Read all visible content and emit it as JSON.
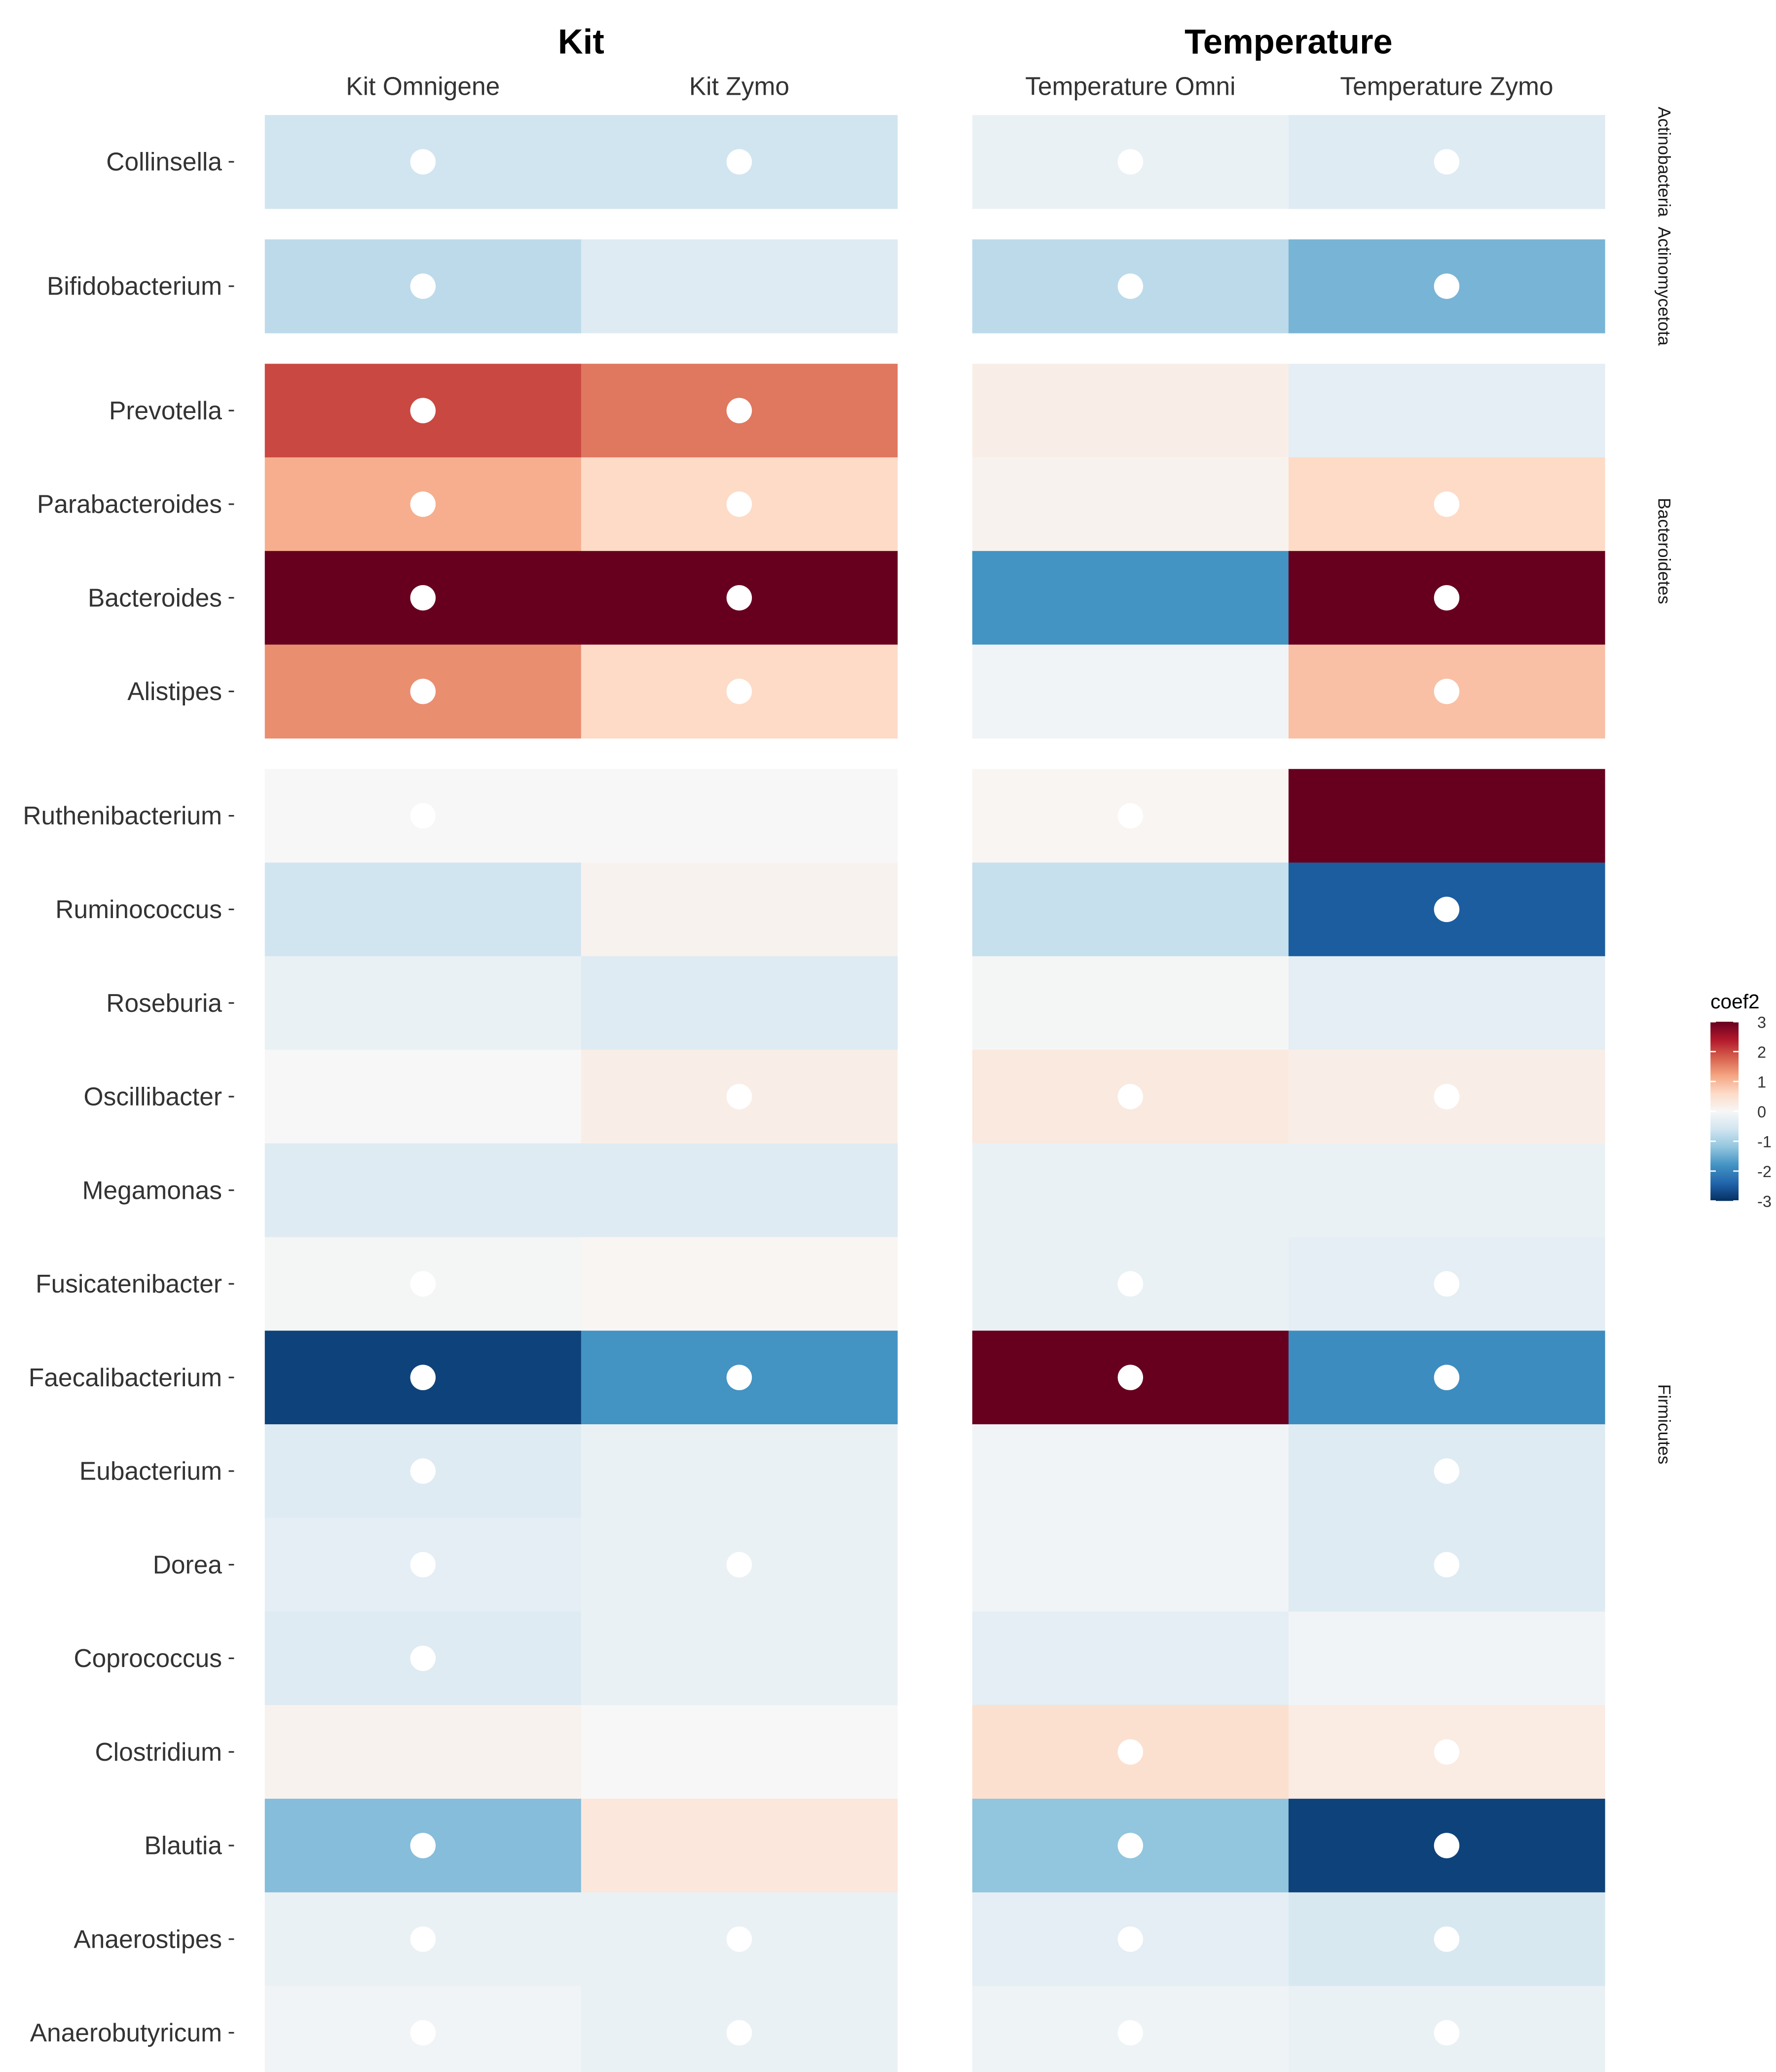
{
  "chart_data": {
    "type": "heatmap",
    "legend": {
      "title": "coef2",
      "ticks": [
        3,
        2,
        1,
        0,
        -1,
        -2,
        -3
      ],
      "range": [
        -3,
        3
      ],
      "position": "right"
    },
    "colors": {
      "scale": [
        "#053061",
        "#2166ac",
        "#4393c3",
        "#92c5de",
        "#d1e5f0",
        "#f7f7f7",
        "#fddbc7",
        "#f4a582",
        "#d6604d",
        "#b2182b",
        "#67001f"
      ],
      "marker": "#ffffff"
    },
    "facets": [
      {
        "title": "Kit",
        "columns": [
          "Kit Omnigene",
          "Kit Zymo"
        ]
      },
      {
        "title": "Temperature",
        "columns": [
          "Temperature Omni",
          "Temperature Zymo"
        ]
      }
    ],
    "groups": [
      {
        "name": "Actinobacteria",
        "rows": [
          "Collinsella"
        ]
      },
      {
        "name": "Actinomycetota",
        "rows": [
          "Bifidobacterium"
        ]
      },
      {
        "name": "Bacteroidetes",
        "rows": [
          "Prevotella",
          "Parabacteroides",
          "Bacteroides",
          "Alistipes"
        ]
      },
      {
        "name": "Firmicutes",
        "rows": [
          "Ruthenibacterium",
          "Ruminococcus",
          "Roseburia",
          "Oscillibacter",
          "Megamonas",
          "Fusicatenibacter",
          "Faecalibacterium",
          "Eubacterium",
          "Dorea",
          "Coprococcus",
          "Clostridium",
          "Blautia",
          "Anaerostipes",
          "Anaerobutyricum"
        ]
      }
    ],
    "values": {
      "Collinsella": [
        -0.6,
        -0.6,
        -0.2,
        -0.4
      ],
      "Bifidobacterium": [
        -0.8,
        -0.4,
        -0.8,
        -1.4
      ],
      "Prevotella": [
        2.0,
        1.6,
        0.2,
        -0.3
      ],
      "Parabacteroides": [
        1.1,
        0.6,
        0.1,
        0.6
      ],
      "Bacteroides": [
        3.0,
        3.0,
        -1.8,
        3.0
      ],
      "Alistipes": [
        1.4,
        0.6,
        -0.1,
        0.9
      ],
      "Ruthenibacterium": [
        0.0,
        0.0,
        0.05,
        3.0
      ],
      "Ruminococcus": [
        -0.6,
        0.1,
        -0.7,
        -2.5
      ],
      "Roseburia": [
        -0.2,
        -0.4,
        -0.05,
        -0.3
      ],
      "Oscillibacter": [
        0.0,
        0.2,
        0.3,
        0.2
      ],
      "Megamonas": [
        -0.4,
        -0.4,
        -0.2,
        -0.2
      ],
      "Fusicatenibacter": [
        -0.05,
        0.05,
        -0.2,
        -0.3
      ],
      "Faecalibacterium": [
        -2.8,
        -1.8,
        3.0,
        -1.9
      ],
      "Eubacterium": [
        -0.4,
        -0.2,
        -0.1,
        -0.4
      ],
      "Dorea": [
        -0.3,
        -0.2,
        -0.1,
        -0.4
      ],
      "Coprococcus": [
        -0.4,
        -0.2,
        -0.3,
        -0.1
      ],
      "Clostridium": [
        0.1,
        0.0,
        0.5,
        0.25
      ],
      "Blautia": [
        -1.3,
        0.35,
        -1.2,
        -2.8
      ],
      "Anaerostipes": [
        -0.2,
        -0.2,
        -0.3,
        -0.5
      ],
      "Anaerobutyricum": [
        -0.1,
        -0.2,
        -0.15,
        -0.2
      ]
    },
    "significant": {
      "Collinsella": [
        true,
        true,
        true,
        true
      ],
      "Bifidobacterium": [
        true,
        false,
        true,
        true
      ],
      "Prevotella": [
        true,
        true,
        false,
        false
      ],
      "Parabacteroides": [
        true,
        true,
        false,
        true
      ],
      "Bacteroides": [
        true,
        true,
        false,
        true
      ],
      "Alistipes": [
        true,
        true,
        false,
        true
      ],
      "Ruthenibacterium": [
        true,
        false,
        true,
        false
      ],
      "Ruminococcus": [
        false,
        false,
        false,
        true
      ],
      "Roseburia": [
        false,
        false,
        false,
        false
      ],
      "Oscillibacter": [
        false,
        true,
        true,
        true
      ],
      "Megamonas": [
        false,
        false,
        false,
        false
      ],
      "Fusicatenibacter": [
        true,
        false,
        true,
        true
      ],
      "Faecalibacterium": [
        true,
        true,
        true,
        true
      ],
      "Eubacterium": [
        true,
        false,
        false,
        true
      ],
      "Dorea": [
        true,
        true,
        false,
        true
      ],
      "Coprococcus": [
        true,
        false,
        false,
        false
      ],
      "Clostridium": [
        false,
        false,
        true,
        true
      ],
      "Blautia": [
        true,
        false,
        true,
        true
      ],
      "Anaerostipes": [
        true,
        true,
        true,
        true
      ],
      "Anaerobutyricum": [
        true,
        true,
        true,
        true
      ]
    }
  }
}
